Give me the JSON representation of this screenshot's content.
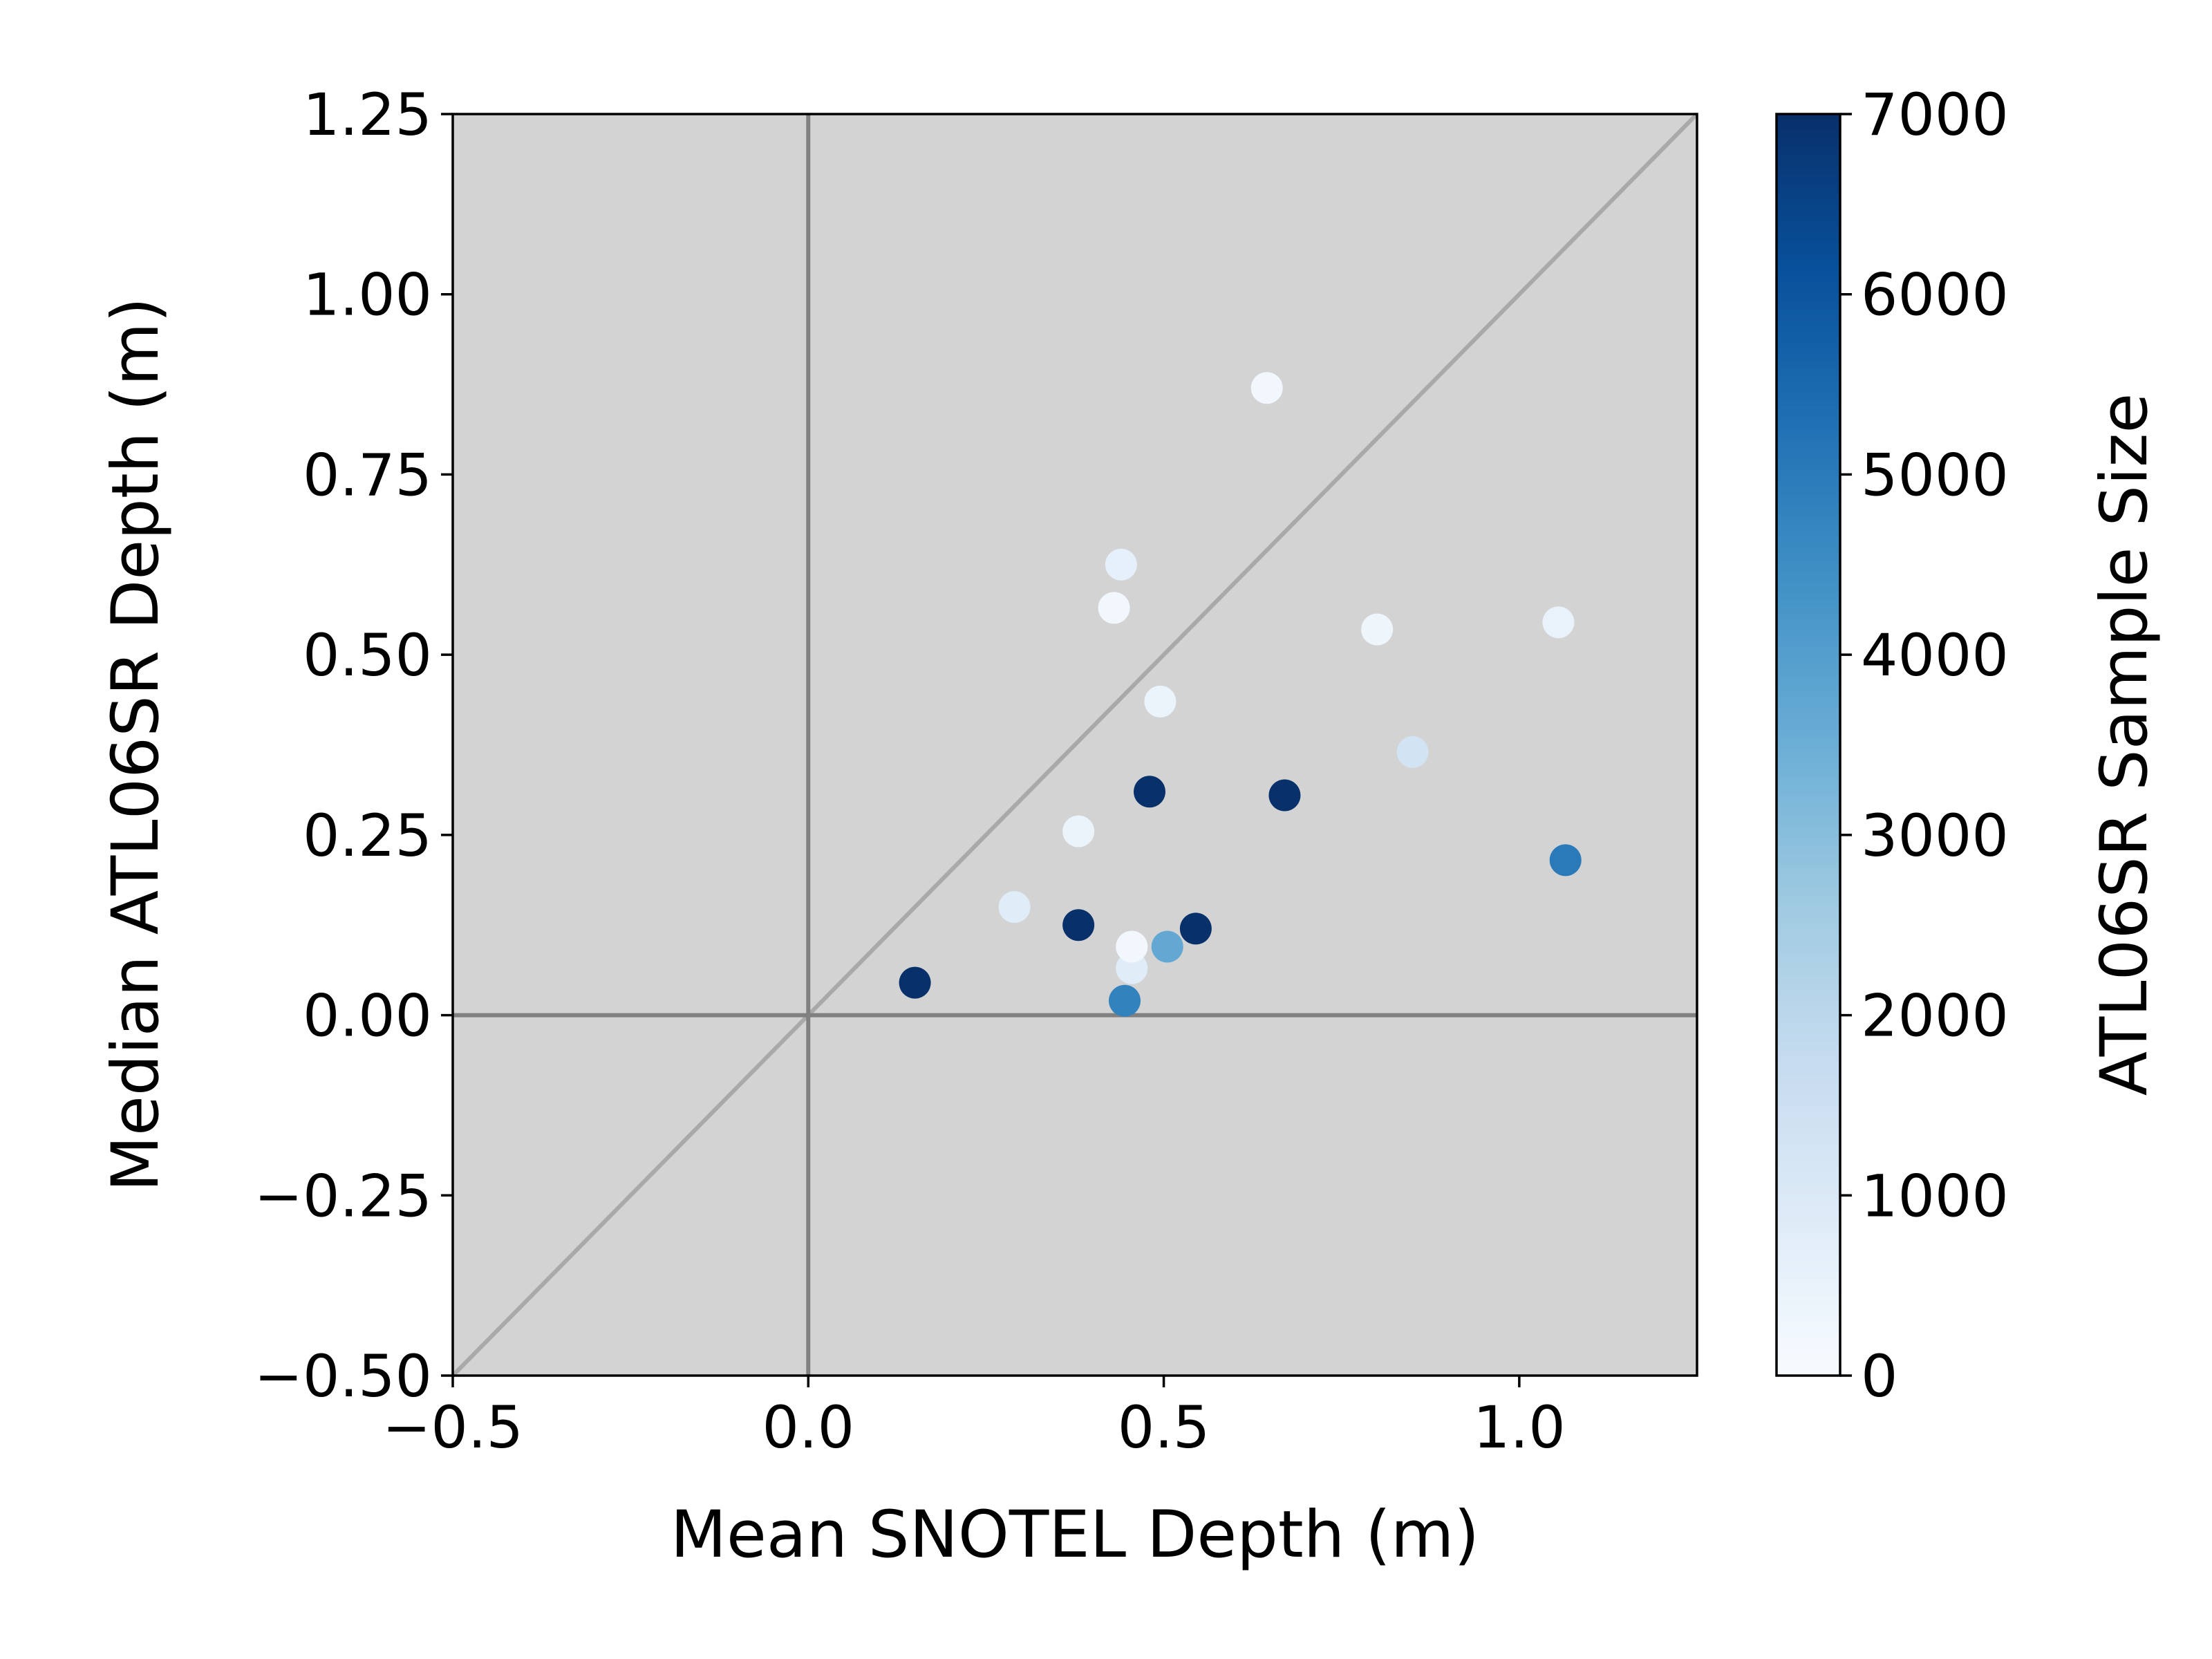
{
  "chart_data": {
    "type": "scatter",
    "title": "",
    "xlabel": "Mean SNOTEL Depth (m)",
    "ylabel": "Median ATL06SR Depth (m)",
    "xlim": [
      -0.5,
      1.25
    ],
    "ylim": [
      -0.5,
      1.25
    ],
    "xticks": [
      -0.5,
      0.0,
      0.5,
      1.0
    ],
    "xtick_labels": [
      "−0.5",
      "0.0",
      "0.5",
      "1.0"
    ],
    "yticks": [
      -0.5,
      -0.25,
      0.0,
      0.25,
      0.5,
      0.75,
      1.0,
      1.25
    ],
    "ytick_labels": [
      "−0.50",
      "−0.25",
      "0.00",
      "0.25",
      "0.50",
      "0.75",
      "1.00",
      "1.25"
    ],
    "reference_lines": [
      "x=0",
      "y=0",
      "y=x (1:1)"
    ],
    "plot_background": "#d3d3d3",
    "colormap": "Blues",
    "colorbar": {
      "label": "ATL06SR Sample Size",
      "range": [
        0,
        7000
      ],
      "ticks": [
        0,
        1000,
        2000,
        3000,
        4000,
        5000,
        6000,
        7000
      ],
      "tick_labels": [
        "0",
        "1000",
        "2000",
        "3000",
        "4000",
        "5000",
        "6000",
        "7000"
      ]
    },
    "points": [
      {
        "x": 0.15,
        "y": 0.045,
        "n": 7000
      },
      {
        "x": 0.29,
        "y": 0.15,
        "n": 800
      },
      {
        "x": 0.38,
        "y": 0.125,
        "n": 7000
      },
      {
        "x": 0.38,
        "y": 0.255,
        "n": 400
      },
      {
        "x": 0.43,
        "y": 0.565,
        "n": 200
      },
      {
        "x": 0.44,
        "y": 0.625,
        "n": 600
      },
      {
        "x": 0.445,
        "y": 0.02,
        "n": 4800
      },
      {
        "x": 0.455,
        "y": 0.065,
        "n": 800
      },
      {
        "x": 0.455,
        "y": 0.095,
        "n": 200
      },
      {
        "x": 0.48,
        "y": 0.31,
        "n": 7000
      },
      {
        "x": 0.495,
        "y": 0.435,
        "n": 400
      },
      {
        "x": 0.505,
        "y": 0.095,
        "n": 3700
      },
      {
        "x": 0.545,
        "y": 0.12,
        "n": 7000
      },
      {
        "x": 0.645,
        "y": 0.87,
        "n": 200
      },
      {
        "x": 0.67,
        "y": 0.305,
        "n": 7000
      },
      {
        "x": 0.8,
        "y": 0.535,
        "n": 300
      },
      {
        "x": 0.85,
        "y": 0.365,
        "n": 1300
      },
      {
        "x": 1.055,
        "y": 0.545,
        "n": 500
      },
      {
        "x": 1.065,
        "y": 0.215,
        "n": 5000
      }
    ]
  }
}
